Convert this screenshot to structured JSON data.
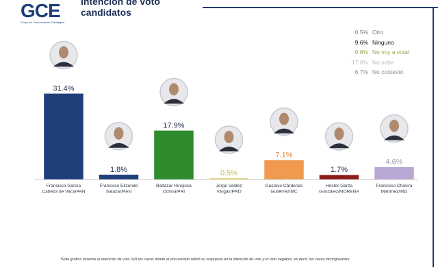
{
  "header": {
    "logo_text": "GCE",
    "logo_subtext": "Grupo de Comunicación Estratégica",
    "title_line1": "intención de voto",
    "title_line2": "candidatos"
  },
  "legend": [
    {
      "value": "0.5%",
      "label": "Otro",
      "color": "#7a7f8c"
    },
    {
      "value": "9.6%",
      "label": "Ninguno",
      "color": "#1a1a1a"
    },
    {
      "value": "0.6%",
      "label": "No voy a votar",
      "color": "#9aa44a"
    },
    {
      "value": "17.6%",
      "label": "No sabe",
      "color": "#b7bcc8"
    },
    {
      "value": "6.7%",
      "label": "No contestó",
      "color": "#8a8f9c"
    }
  ],
  "chart_data": {
    "type": "bar",
    "title": "intención de voto candidatos",
    "categories": [
      "Francisco García Cabeza de Vaca/PAN",
      "Francisco Elizondo Salazar/PAN",
      "Baltazar Hinojosa Ochoa/PRI",
      "Jorge Valdez Vargas/PRD",
      "Gustavo Cárdenas Gutiérrez/MC",
      "Héctor Garza González/MORENA",
      "Francisco Chavira Martínez/IND"
    ],
    "label_lines": [
      [
        "Francisco García",
        "Cabeza de Vaca/PAN"
      ],
      [
        "Francisco Elizondo",
        "Salazar/PAN"
      ],
      [
        "Baltazar Hinojosa",
        "Ochoa/PRI"
      ],
      [
        "Jorge Valdez",
        "Vargas/PRD"
      ],
      [
        "Gustavo Cárdenas",
        "Gutiérrez/MC"
      ],
      [
        "Héctor Garza",
        "González/MORENA"
      ],
      [
        "Francisco Chavira",
        "Martínez/IND"
      ]
    ],
    "values": [
      31.4,
      1.8,
      17.9,
      0.5,
      7.1,
      1.7,
      4.6
    ],
    "value_labels": [
      "31.4%",
      "1.8%",
      "17.9%",
      "0.5%",
      "7.1%",
      "1.7%",
      "4.6%"
    ],
    "colors": [
      "#1f3f7a",
      "#1f3f7a",
      "#2e8b2e",
      "#e6d26a",
      "#ef9a4f",
      "#8b1a1a",
      "#b9a7d6"
    ],
    "label_colors": [
      "#1f2d4d",
      "#1f2d4d",
      "#1f2d4d",
      "#c9b33a",
      "#e0893a",
      "#1f2d4d",
      "#9a9aa8"
    ],
    "ylim": [
      0,
      35
    ],
    "grid": false
  },
  "footnote": "*Esta gráfica muestra la intención de voto SIN los casos donde el encuestado refirió su respuesta en la intención de voto y el voto negativo, es decir, los casos incongruentes."
}
